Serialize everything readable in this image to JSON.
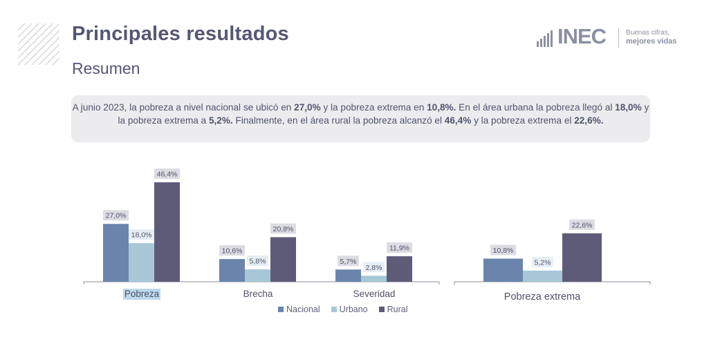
{
  "header": {
    "title": "Principales resultados",
    "subtitle": "Resumen"
  },
  "logo": {
    "word": "INEC",
    "tagline_1": "Buenas cifras,",
    "tagline_2": "mejores vidas"
  },
  "summary": {
    "p1": "A junio 2023, la pobreza a nivel nacional se ubicó en ",
    "b1": "27,0%",
    "p2": " y la pobreza extrema en ",
    "b2": "10,8%.",
    "p3": " En el área urbana la pobreza llegó al ",
    "b3": "18,0%",
    "p4": " y la pobreza extrema a ",
    "b4": "5,2%.",
    "p5": " Finalmente, en el área rural la pobreza alcanzó el ",
    "b5": "46,4%",
    "p6": " y la pobreza extrema el  ",
    "b6": "22,6%."
  },
  "colors": {
    "nacional": "#6b84ab",
    "urbano": "#a7c7d7",
    "rural": "#5e5b78",
    "label_bg": "#dcdce3",
    "axis": "#8b8b9b"
  },
  "chart_data": [
    {
      "type": "bar",
      "categories": [
        "Pobreza",
        "Brecha",
        "Severidad"
      ],
      "series": [
        {
          "name": "Nacional",
          "values": [
            27.0,
            10.6,
            5.7
          ],
          "labels": [
            "27,0%",
            "10,6%",
            "5,7%"
          ]
        },
        {
          "name": "Urbano",
          "values": [
            18.0,
            5.8,
            2.8
          ],
          "labels": [
            "18,0%",
            "5,8%",
            "2,8%"
          ]
        },
        {
          "name": "Rural",
          "values": [
            46.4,
            20.8,
            11.9
          ],
          "labels": [
            "46,4%",
            "20,8%",
            "11,9%"
          ]
        }
      ],
      "legend": [
        "Nacional",
        "Urbano",
        "Rural"
      ],
      "legend_position": "bottom",
      "ylim": [
        0,
        50
      ]
    },
    {
      "type": "bar",
      "categories": [
        "Pobreza extrema"
      ],
      "series": [
        {
          "name": "Nacional",
          "values": [
            10.8
          ],
          "labels": [
            "10,8%"
          ]
        },
        {
          "name": "Urbano",
          "values": [
            5.2
          ],
          "labels": [
            "5,2%"
          ]
        },
        {
          "name": "Rural",
          "values": [
            22.6
          ],
          "labels": [
            "22,6%"
          ]
        }
      ],
      "ylim": [
        0,
        50
      ]
    }
  ]
}
